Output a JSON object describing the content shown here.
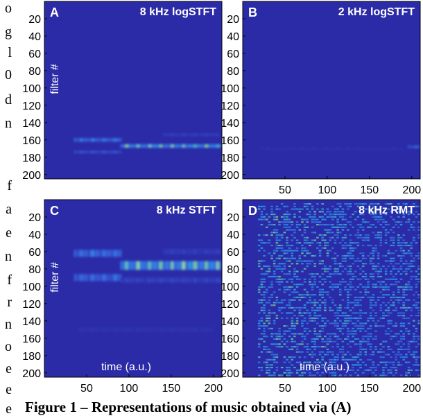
{
  "margin_text": [
    "o",
    "g",
    "l",
    "0",
    "d",
    "n",
    "",
    "f",
    "a",
    "e",
    "n",
    "f",
    "r",
    "n",
    "o",
    "e",
    "e",
    "e"
  ],
  "caption": "Figure 1 – Representations of music obtained via (A)",
  "colors": {
    "background": "#2b2ba8",
    "hot": "#c8e63c",
    "mid": "#28a0e8",
    "low": "#3a5ad8"
  },
  "chart_data": [
    {
      "type": "heatmap",
      "panel": "A",
      "title": "8 kHz logSTFT",
      "ylabel": "filter #",
      "xlabel": "",
      "yticks": [
        20,
        40,
        60,
        80,
        100,
        120,
        140,
        160,
        180,
        200
      ],
      "xticks": [],
      "xlim": [
        0,
        210
      ],
      "ylim": [
        0,
        205
      ],
      "bands": [
        {
          "x0": 35,
          "x1": 90,
          "y": 160,
          "h": 4,
          "level": 0.55
        },
        {
          "x0": 35,
          "x1": 90,
          "y": 174,
          "h": 3,
          "level": 0.35
        },
        {
          "x0": 90,
          "x1": 210,
          "y": 167,
          "h": 4,
          "level": 0.8
        },
        {
          "x0": 140,
          "x1": 205,
          "y": 154,
          "h": 3,
          "level": 0.2
        }
      ]
    },
    {
      "type": "heatmap",
      "panel": "B",
      "title": "2 kHz logSTFT",
      "ylabel": "",
      "xlabel": "",
      "yticks": [
        20,
        40,
        60,
        80,
        100,
        120,
        140,
        160,
        180,
        200
      ],
      "xticks": [
        50,
        100,
        150,
        200
      ],
      "xlim": [
        0,
        210
      ],
      "ylim": [
        0,
        205
      ],
      "bands": [
        {
          "x0": 195,
          "x1": 210,
          "y": 168,
          "h": 3,
          "level": 0.45
        },
        {
          "x0": 20,
          "x1": 190,
          "y": 170,
          "h": 2,
          "level": 0.08
        }
      ]
    },
    {
      "type": "heatmap",
      "panel": "C",
      "title": "8 kHz STFT",
      "ylabel": "filter #",
      "xlabel": "time (a.u.)",
      "yticks": [
        20,
        40,
        60,
        80,
        100,
        120,
        140,
        160,
        180,
        200
      ],
      "xticks": [
        50,
        100,
        150,
        200
      ],
      "xlim": [
        0,
        210
      ],
      "ylim": [
        0,
        205
      ],
      "bands": [
        {
          "x0": 35,
          "x1": 90,
          "y": 62,
          "h": 8,
          "level": 0.5
        },
        {
          "x0": 35,
          "x1": 90,
          "y": 90,
          "h": 8,
          "level": 0.45
        },
        {
          "x0": 90,
          "x1": 210,
          "y": 76,
          "h": 10,
          "level": 0.8
        },
        {
          "x0": 90,
          "x1": 210,
          "y": 93,
          "h": 6,
          "level": 0.2
        },
        {
          "x0": 140,
          "x1": 210,
          "y": 60,
          "h": 6,
          "level": 0.15
        },
        {
          "x0": 40,
          "x1": 200,
          "y": 150,
          "h": 4,
          "level": 0.08
        }
      ]
    },
    {
      "type": "heatmap",
      "panel": "D",
      "title": "8 kHz RMT",
      "ylabel": "",
      "xlabel": "time (a.u.)",
      "yticks": [
        20,
        40,
        60,
        80,
        100,
        120,
        140,
        160,
        180,
        200
      ],
      "xticks": [
        50,
        100,
        150,
        200
      ],
      "xlim": [
        0,
        210
      ],
      "ylim": [
        0,
        205
      ],
      "noise": true
    }
  ]
}
